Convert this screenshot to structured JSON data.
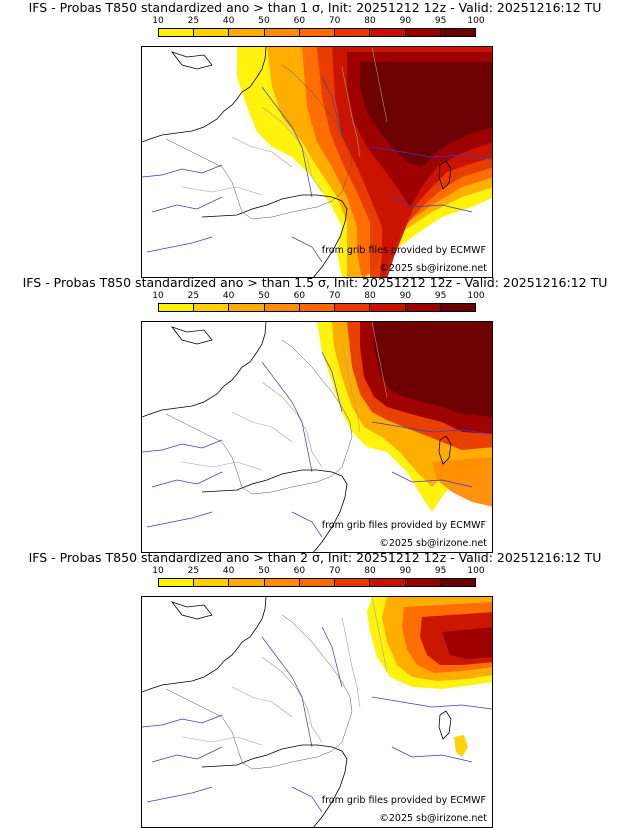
{
  "colorbar": {
    "ticks": [
      "10",
      "25",
      "40",
      "50",
      "60",
      "70",
      "80",
      "90",
      "95",
      "100"
    ],
    "colors": [
      "#fff200",
      "#ffd000",
      "#ffaa00",
      "#ff8c00",
      "#ff6a00",
      "#e83a00",
      "#c81200",
      "#9a0000",
      "#6a0000"
    ]
  },
  "credits": {
    "source": "from grib files provided by ECMWF",
    "copyright": "©2025 sb@irizone.net"
  },
  "panels": [
    {
      "title": "IFS - Probas T850  standardized ano > than 1 σ, Init: 20251212 12z - Valid: 20251216:12 TU",
      "extent": "large"
    },
    {
      "title": "IFS - Probas T850  standardized ano > than 1.5 σ, Init: 20251212 12z - Valid: 20251216:12 TU",
      "extent": "medium"
    },
    {
      "title": "IFS - Probas T850  standardized ano > than 2 σ, Init: 20251212 12z - Valid: 20251216:12 TU",
      "extent": "small"
    }
  ]
}
